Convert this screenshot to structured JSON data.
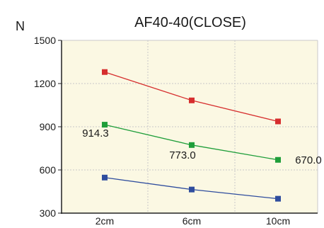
{
  "chart_data": {
    "type": "line",
    "title": "AF40-40(CLOSE)",
    "ylabel": "N",
    "xlabel": "",
    "categories": [
      "2cm",
      "6cm",
      "10cm"
    ],
    "ylim": [
      300,
      1500
    ],
    "yticks": [
      300,
      600,
      900,
      1200,
      1500
    ],
    "grid": true,
    "background_color": "#fbf8e3",
    "grid_color": "#c8c8c8",
    "series": [
      {
        "color": "#d62e2e",
        "values": [
          1280,
          1083,
          937
        ]
      },
      {
        "color": "#1f9e3a",
        "values": [
          914.3,
          773.0,
          670.0
        ],
        "labels": [
          "914.3",
          "773.0",
          "670.0"
        ]
      },
      {
        "color": "#2f4d9e",
        "values": [
          547,
          464,
          400
        ]
      }
    ]
  }
}
